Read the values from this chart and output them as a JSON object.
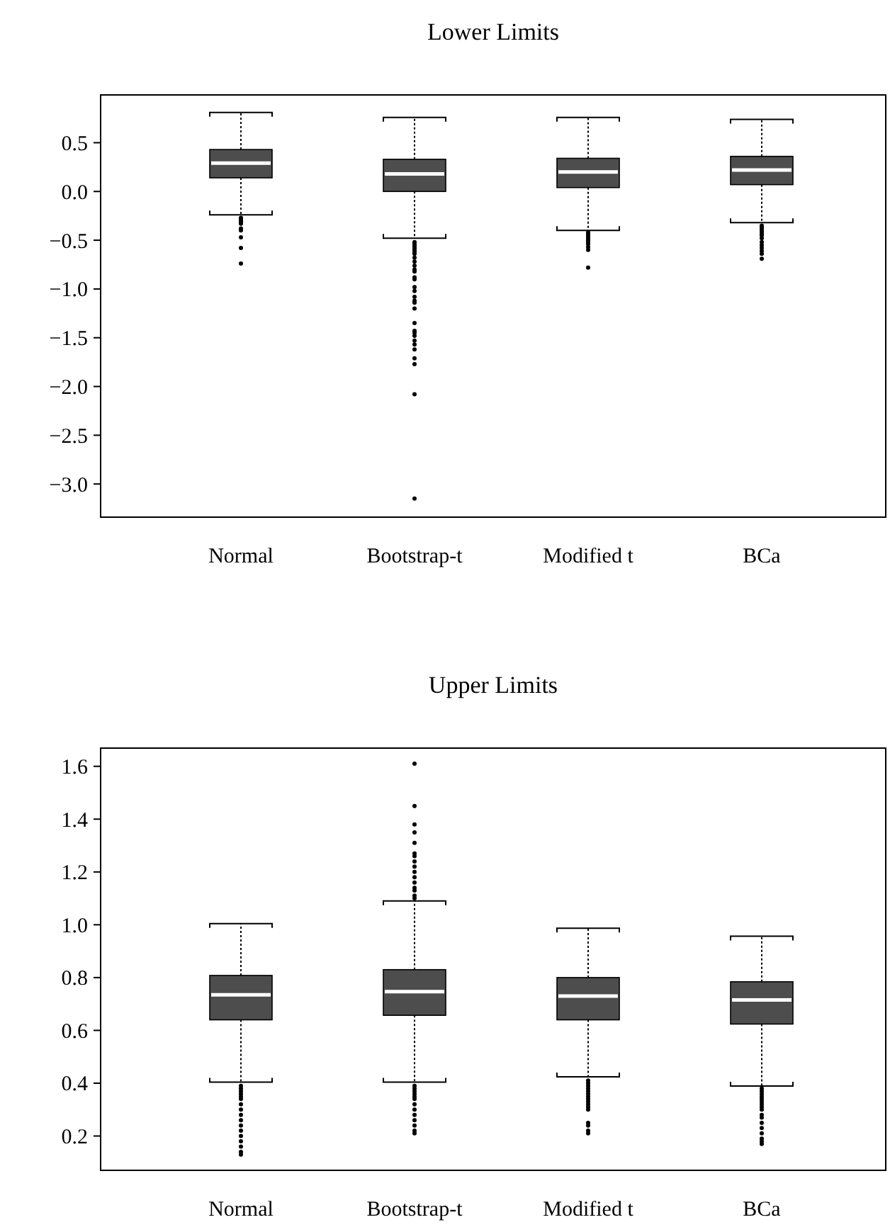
{
  "chart_data": [
    {
      "type": "box",
      "title": "Lower Limits",
      "categories": [
        "Normal",
        "Bootstrap-t",
        "Modified t",
        "BCa"
      ],
      "color": "#4d4d4d",
      "ylim": [
        -3.34,
        0.99
      ],
      "yticks": [
        {
          "value": -3,
          "label": "−3.0"
        },
        {
          "value": -2.5,
          "label": "−2.5"
        },
        {
          "value": -2,
          "label": "−2.0"
        },
        {
          "value": -1.5,
          "label": "−1.5"
        },
        {
          "value": -1,
          "label": "−1.0"
        },
        {
          "value": -0.5,
          "label": "−0.5"
        },
        {
          "value": 0,
          "label": "0.0"
        },
        {
          "value": 0.5,
          "label": "0.5"
        }
      ],
      "boxes": [
        {
          "low": -0.24,
          "q1": 0.14,
          "median": 0.29,
          "q3": 0.43,
          "high": 0.81,
          "outliers": [
            -0.27,
            -0.28,
            -0.29,
            -0.3,
            -0.31,
            -0.32,
            -0.33,
            -0.38,
            -0.4,
            -0.47,
            -0.58,
            -0.74
          ]
        },
        {
          "low": -0.48,
          "q1": 0.0,
          "median": 0.18,
          "q3": 0.33,
          "high": 0.76,
          "outliers": [
            -0.52,
            -0.54,
            -0.56,
            -0.58,
            -0.6,
            -0.62,
            -0.64,
            -0.68,
            -0.72,
            -0.76,
            -0.8,
            -0.82,
            -0.88,
            -0.9,
            -0.98,
            -1.02,
            -1.08,
            -1.12,
            -1.14,
            -1.2,
            -1.35,
            -1.43,
            -1.45,
            -1.48,
            -1.53,
            -1.57,
            -1.62,
            -1.71,
            -1.77,
            -2.08,
            -3.15
          ]
        },
        {
          "low": -0.4,
          "q1": 0.04,
          "median": 0.2,
          "q3": 0.34,
          "high": 0.76,
          "outliers": [
            -0.42,
            -0.44,
            -0.46,
            -0.48,
            -0.5,
            -0.52,
            -0.54,
            -0.57,
            -0.6,
            -0.78
          ]
        },
        {
          "low": -0.32,
          "q1": 0.07,
          "median": 0.22,
          "q3": 0.36,
          "high": 0.74,
          "outliers": [
            -0.35,
            -0.37,
            -0.39,
            -0.41,
            -0.43,
            -0.45,
            -0.48,
            -0.52,
            -0.55,
            -0.58,
            -0.61,
            -0.64,
            -0.69
          ]
        }
      ]
    },
    {
      "type": "box",
      "title": "Upper Limits",
      "categories": [
        "Normal",
        "Bootstrap-t",
        "Modified t",
        "BCa"
      ],
      "color": "#4d4d4d",
      "ylim": [
        0.07,
        1.669
      ],
      "yticks": [
        0.2,
        0.4,
        0.6,
        0.8,
        {
          "value": 1,
          "label": "1.0"
        },
        1.2,
        1.4,
        1.6
      ],
      "boxes": [
        {
          "low": 0.404,
          "q1": 0.64,
          "median": 0.735,
          "q3": 0.808,
          "high": 1.004,
          "outliers": [
            0.39,
            0.38,
            0.37,
            0.36,
            0.35,
            0.34,
            0.32,
            0.3,
            0.28,
            0.26,
            0.24,
            0.22,
            0.2,
            0.18,
            0.16,
            0.14,
            0.13
          ]
        },
        {
          "low": 0.404,
          "q1": 0.657,
          "median": 0.747,
          "q3": 0.83,
          "high": 1.09,
          "outliers": [
            1.61,
            1.45,
            1.38,
            1.35,
            1.31,
            1.27,
            1.26,
            1.24,
            1.22,
            1.2,
            1.18,
            1.16,
            1.14,
            1.13,
            1.11,
            1.1,
            0.39,
            0.38,
            0.37,
            0.36,
            0.35,
            0.34,
            0.32,
            0.3,
            0.28,
            0.26,
            0.24,
            0.22,
            0.21
          ]
        },
        {
          "low": 0.424,
          "q1": 0.64,
          "median": 0.73,
          "q3": 0.8,
          "high": 0.987,
          "outliers": [
            0.41,
            0.4,
            0.39,
            0.38,
            0.37,
            0.36,
            0.35,
            0.34,
            0.33,
            0.32,
            0.31,
            0.3,
            0.25,
            0.24,
            0.22,
            0.21
          ]
        },
        {
          "low": 0.389,
          "q1": 0.624,
          "median": 0.715,
          "q3": 0.784,
          "high": 0.957,
          "outliers": [
            0.38,
            0.37,
            0.36,
            0.35,
            0.34,
            0.33,
            0.32,
            0.31,
            0.3,
            0.28,
            0.27,
            0.25,
            0.23,
            0.21,
            0.19,
            0.18,
            0.17
          ]
        }
      ]
    }
  ]
}
